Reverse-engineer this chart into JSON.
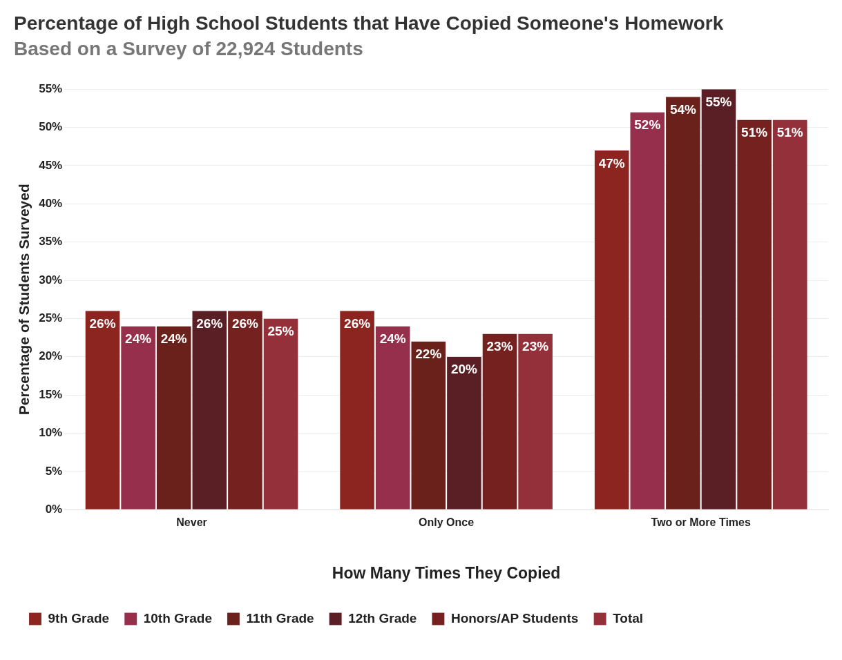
{
  "chart_data": {
    "type": "bar",
    "title": "Percentage of High School Students that Have Copied Someone's Homework",
    "subtitle": "Based on a Survey of 22,924 Students",
    "xlabel": "How Many Times They Copied",
    "ylabel": "Percentage of Students Surveyed",
    "categories": [
      "Never",
      "Only Once",
      "Two or More Times"
    ],
    "series": [
      {
        "name": "9th Grade",
        "color": "#8c2420",
        "values": [
          26,
          26,
          47
        ],
        "value_labels": [
          "26%",
          "26%",
          "47%"
        ]
      },
      {
        "name": "10th Grade",
        "color": "#952f4b",
        "values": [
          24,
          24,
          52
        ],
        "value_labels": [
          "24%",
          "24%",
          "52%"
        ]
      },
      {
        "name": "11th Grade",
        "color": "#6a211b",
        "values": [
          24,
          22,
          54
        ],
        "value_labels": [
          "24%",
          "22%",
          "54%"
        ]
      },
      {
        "name": "12th Grade",
        "color": "#5a1f25",
        "values": [
          26,
          20,
          55
        ],
        "value_labels": [
          "26%",
          "20%",
          "55%"
        ]
      },
      {
        "name": "Honors/AP Students",
        "color": "#75211f",
        "values": [
          26,
          23,
          51
        ],
        "value_labels": [
          "26%",
          "23%",
          "51%"
        ]
      },
      {
        "name": "Total",
        "color": "#943039",
        "values": [
          25,
          23,
          51
        ],
        "value_labels": [
          "25%",
          "23%",
          "51%"
        ]
      }
    ],
    "ylim": [
      0,
      55
    ],
    "yticks": [
      {
        "value": 0,
        "label": "0%"
      },
      {
        "value": 5,
        "label": "5%"
      },
      {
        "value": 10,
        "label": "10%"
      },
      {
        "value": 15,
        "label": "15%"
      },
      {
        "value": 20,
        "label": "20%"
      },
      {
        "value": 25,
        "label": "25%"
      },
      {
        "value": 30,
        "label": "30%"
      },
      {
        "value": 35,
        "label": "35%"
      },
      {
        "value": 40,
        "label": "40%"
      },
      {
        "value": 45,
        "label": "45%"
      },
      {
        "value": 50,
        "label": "50%"
      },
      {
        "value": 55,
        "label": "55%"
      }
    ],
    "grid": "y",
    "legend": "bottom left"
  }
}
